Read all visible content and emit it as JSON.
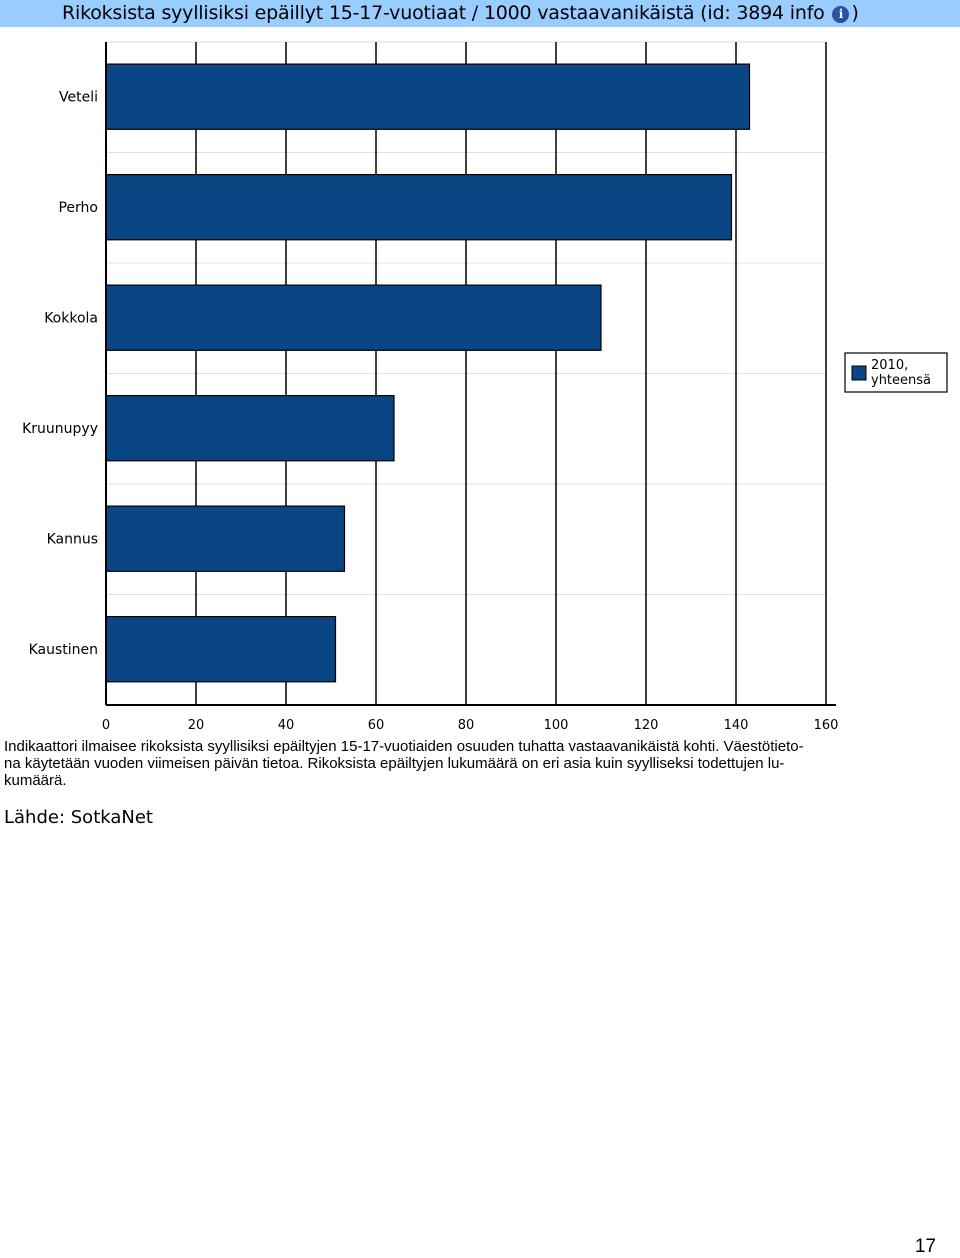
{
  "page": {
    "title": "Rikoksista syyllisiksi epäillyt 15-17-vuotiaat / 1000 vastaavanikäistä (id: 3894 info",
    "title_close": ")",
    "info_icon": "info-icon",
    "description_line1": "Indikaattori ilmaisee rikoksista syyllisiksi epäiltyjen 15-17-vuotiaiden osuuden tuhatta vastaavanikäistä kohti. Väestötieto-",
    "description_line2": "na käytetään vuoden viimeisen päivän tietoa. Rikoksista epäiltyjen lukumäärä on eri asia kuin syylliseksi todettujen lu-",
    "description_line3": "kumäärä.",
    "source": "Lähde: SotkaNet",
    "page_number": "17"
  },
  "chart_data": {
    "type": "bar",
    "orientation": "horizontal",
    "categories": [
      "Veteli",
      "Perho",
      "Kokkola",
      "Kruunupyy",
      "Kannus",
      "Kaustinen"
    ],
    "series": [
      {
        "name": "2010, yhteensä",
        "values": [
          143,
          139,
          110,
          64,
          53,
          51
        ],
        "color": "#0a4683"
      }
    ],
    "xlim": [
      0,
      160
    ],
    "xticks": [
      "0",
      "20",
      "40",
      "60",
      "80",
      "100",
      "120",
      "140",
      "160"
    ],
    "grid": true,
    "legend_position": "right",
    "legend_lines": [
      "2010,",
      "yhteensä"
    ]
  }
}
